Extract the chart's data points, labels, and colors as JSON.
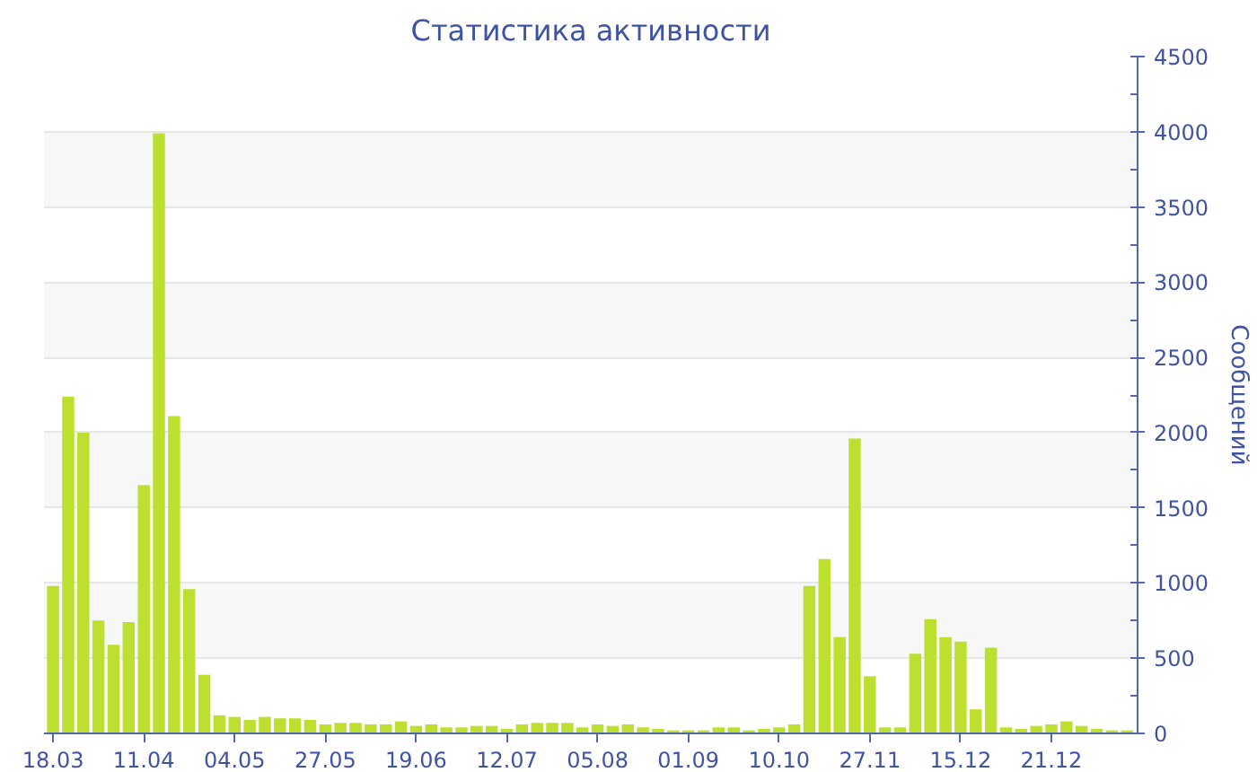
{
  "chart_data": {
    "type": "bar",
    "title": "Статистика активности",
    "ylabel": "Сообщений",
    "categories": [
      "18.03",
      null,
      null,
      null,
      null,
      null,
      "11.04",
      null,
      null,
      null,
      null,
      null,
      "04.05",
      null,
      null,
      null,
      null,
      null,
      "27.05",
      null,
      null,
      null,
      null,
      null,
      "19.06",
      null,
      null,
      null,
      null,
      null,
      "12.07",
      null,
      null,
      null,
      null,
      null,
      "05.08",
      null,
      null,
      null,
      null,
      null,
      "01.09",
      null,
      null,
      null,
      null,
      null,
      "10.10",
      null,
      null,
      null,
      null,
      null,
      "27.11",
      null,
      null,
      null,
      null,
      null,
      "15.12",
      null,
      null,
      null,
      null,
      null,
      "21.12",
      null,
      null,
      null,
      null,
      null
    ],
    "values": [
      980,
      2240,
      2000,
      750,
      590,
      740,
      1650,
      3990,
      2110,
      960,
      390,
      120,
      110,
      90,
      110,
      100,
      100,
      90,
      60,
      70,
      70,
      60,
      60,
      80,
      50,
      60,
      40,
      40,
      50,
      50,
      30,
      60,
      70,
      70,
      70,
      40,
      60,
      50,
      60,
      40,
      30,
      20,
      20,
      20,
      40,
      40,
      20,
      30,
      40,
      60,
      980,
      1160,
      640,
      1960,
      380,
      40,
      40,
      530,
      760,
      640,
      610,
      160,
      570,
      40,
      30,
      50,
      60,
      80,
      50,
      30,
      20,
      20
    ],
    "color": "#bde030",
    "ylim": [
      0,
      4500
    ],
    "yticks": [
      0,
      {
        "value": 250,
        "label": null
      },
      500,
      {
        "value": 750,
        "label": null
      },
      1000,
      {
        "value": 1250,
        "label": null
      },
      1500,
      {
        "value": 1750,
        "label": null
      },
      2000,
      {
        "value": 2250,
        "label": null
      },
      2500,
      {
        "value": 2750,
        "label": null
      },
      3000,
      {
        "value": 3250,
        "label": null
      },
      3500,
      {
        "value": 3750,
        "label": null
      },
      4000,
      {
        "value": 4250,
        "label": null
      },
      4500
    ],
    "grid": "y"
  }
}
